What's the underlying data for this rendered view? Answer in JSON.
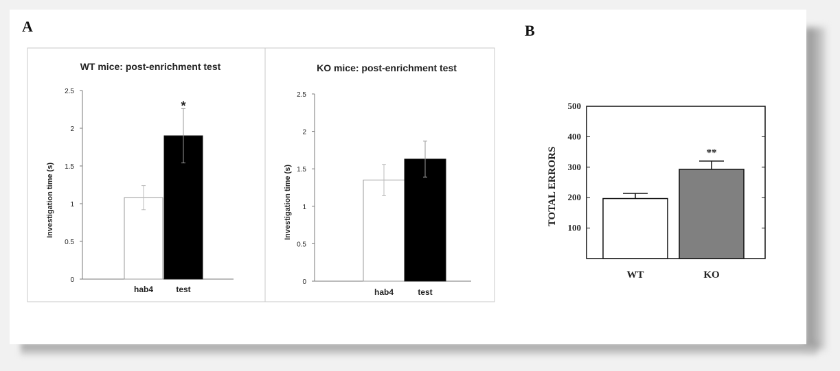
{
  "panels": {
    "a_label": "A",
    "b_label": "B"
  },
  "chart_data": [
    {
      "type": "bar",
      "title": "WT mice: post-enrichment test",
      "ylabel": "Investigation time (s)",
      "xlabel": "",
      "ylim": [
        0,
        2.5
      ],
      "yticks": [
        "0",
        "0.5",
        "1",
        "1.5",
        "2",
        "2.5"
      ],
      "categories": [
        "hab4",
        "test"
      ],
      "values": [
        1.08,
        1.9
      ],
      "errors": [
        0.16,
        0.36
      ],
      "colors": [
        "#ffffff",
        "#000000"
      ],
      "annotations": [
        "",
        "*"
      ],
      "grid": false
    },
    {
      "type": "bar",
      "title": "KO mice: post-enrichment test",
      "ylabel": "Investigation time (s)",
      "xlabel": "",
      "ylim": [
        0,
        2.5
      ],
      "yticks": [
        "0",
        "0.5",
        "1",
        "1.5",
        "2",
        "2.5"
      ],
      "categories": [
        "hab4",
        "test"
      ],
      "values": [
        1.35,
        1.63
      ],
      "errors": [
        0.21,
        0.24
      ],
      "colors": [
        "#ffffff",
        "#000000"
      ],
      "annotations": [
        "",
        ""
      ],
      "grid": false
    },
    {
      "type": "bar",
      "title": "",
      "ylabel": "TOTAL ERRORS",
      "xlabel": "",
      "ylim": [
        0,
        500
      ],
      "yticks": [
        "100",
        "200",
        "300",
        "400",
        "500"
      ],
      "categories": [
        "WT",
        "KO"
      ],
      "values": [
        197,
        293
      ],
      "errors": [
        17,
        27
      ],
      "colors": [
        "#ffffff",
        "#808080"
      ],
      "annotations": [
        "",
        "**"
      ],
      "grid": false
    }
  ]
}
